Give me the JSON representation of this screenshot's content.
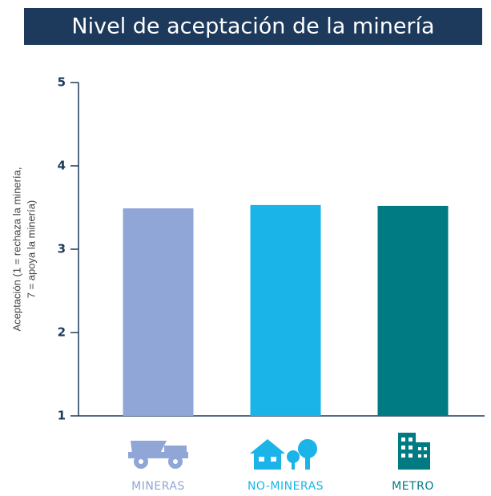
{
  "chart_data": {
    "type": "bar",
    "title": "Nivel de aceptación de la minería",
    "ylabel": [
      "Aceptación (1 = rechaza la minería,",
      "7 = apoya la minería)"
    ],
    "categories": [
      "MINERAS",
      "NO-MINERAS",
      "METRO"
    ],
    "values": [
      3.49,
      3.53,
      3.52
    ],
    "colors": [
      "#8fa6d6",
      "#1ab4e8",
      "#007a83"
    ],
    "ylim": [
      1,
      5
    ],
    "yticks": [
      1,
      2,
      3,
      4,
      5
    ],
    "grid": false
  }
}
